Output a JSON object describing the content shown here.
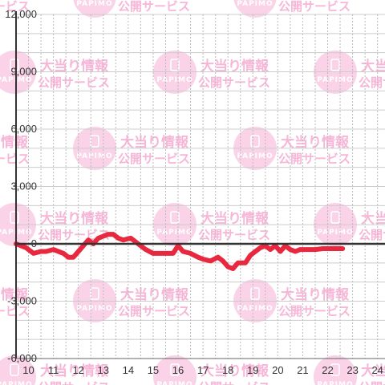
{
  "watermark": {
    "logo_text": "PAPIMO",
    "title": "大当り情報",
    "subtitle": "公開サービス",
    "color": "#f7b6d8",
    "circle_color": "#fbd3e9"
  },
  "chart_data": {
    "type": "line",
    "title": "",
    "xlabel": "",
    "ylabel": "",
    "xlim": [
      9.5,
      24.3
    ],
    "ylim": [
      -6000,
      12000
    ],
    "x_ticks": [
      10,
      11,
      12,
      13,
      14,
      15,
      16,
      17,
      18,
      19,
      20,
      21,
      22,
      23,
      24
    ],
    "y_ticks": [
      -6000,
      -3000,
      0,
      3000,
      6000,
      9000,
      12000
    ],
    "y_tick_labels": [
      "-6,000",
      "-3,000",
      "0",
      "3,000",
      "6,000",
      "9,000",
      "12,000"
    ],
    "grid": true,
    "legend": "none",
    "line_color": "#e8283f",
    "series": [
      {
        "x": [
          9.5,
          9.9,
          10.2,
          10.5,
          10.7,
          11.0,
          11.4,
          11.6,
          11.8,
          12.0,
          12.2,
          12.4,
          12.6,
          12.8,
          13.0,
          13.2,
          13.4,
          13.6,
          13.8,
          14.1,
          14.4,
          14.7,
          15.0,
          15.2,
          15.5,
          15.8,
          16.0,
          16.2,
          16.5,
          16.8,
          17.0,
          17.3,
          17.6,
          17.8,
          18.0,
          18.2,
          18.4,
          18.7,
          18.9,
          19.1,
          19.3,
          19.5,
          19.7,
          19.9,
          20.1,
          20.3,
          20.5,
          20.7,
          20.9,
          21.2,
          21.5,
          21.8,
          22.2,
          22.6
        ],
        "y": [
          0,
          -200,
          -500,
          -400,
          -400,
          -300,
          -500,
          -700,
          -700,
          -400,
          -100,
          200,
          0,
          300,
          400,
          500,
          500,
          300,
          200,
          300,
          0,
          -300,
          -500,
          -500,
          -500,
          -500,
          -100,
          -400,
          -500,
          -700,
          -800,
          -900,
          -700,
          -900,
          -1200,
          -1300,
          -1000,
          -1000,
          -600,
          -400,
          -200,
          -100,
          -300,
          -100,
          -400,
          -100,
          -300,
          -400,
          -300,
          -300,
          -300,
          -250,
          -250,
          -250
        ]
      }
    ]
  }
}
